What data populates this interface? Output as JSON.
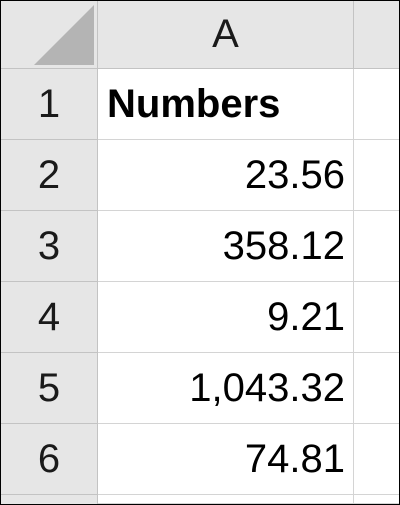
{
  "sheet": {
    "column_headers": [
      "A"
    ],
    "row_headers": [
      "1",
      "2",
      "3",
      "4",
      "5",
      "6"
    ],
    "cells": {
      "A1": "Numbers",
      "A2": "23.56",
      "A3": "358.12",
      "A4": "9.21",
      "A5": "1,043.32",
      "A6": "74.81"
    },
    "colors": {
      "header_bg": "#e6e6e6",
      "gridline": "#d4d4d4",
      "corner_triangle": "#b4b4b4"
    }
  }
}
